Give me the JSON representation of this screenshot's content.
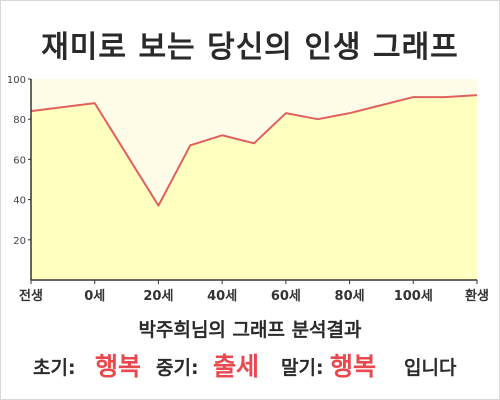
{
  "title": "재미로 보는 당신의 인생 그래프",
  "chart_data": {
    "type": "area",
    "x": [
      -20,
      0,
      20,
      30,
      40,
      50,
      60,
      70,
      80,
      90,
      100,
      110,
      120
    ],
    "values": [
      84,
      88,
      37,
      67,
      72,
      68,
      83,
      80,
      83,
      87,
      91,
      91,
      92
    ],
    "xlim": [
      -20,
      120
    ],
    "ylim": [
      0,
      100
    ],
    "y_ticks": [
      20,
      40,
      60,
      80,
      100
    ],
    "x_ticks": [
      {
        "value": -20,
        "label": "전생"
      },
      {
        "value": 0,
        "label": "0세"
      },
      {
        "value": 20,
        "label": "20세"
      },
      {
        "value": 40,
        "label": "40세"
      },
      {
        "value": 60,
        "label": "60세"
      },
      {
        "value": 80,
        "label": "80세"
      },
      {
        "value": 100,
        "label": "100세"
      },
      {
        "value": 120,
        "label": "환생"
      }
    ],
    "grid": false,
    "line_color": "#e06060",
    "fill_color": "#ffffc0"
  },
  "summary": "박주희님의 그래프 분석결과",
  "result": {
    "early_label": "초기:",
    "early_value": "행복",
    "middle_label": "중기:",
    "middle_value": "출세",
    "late_label": "말기:",
    "late_value": "행복",
    "suffix": "입니다"
  },
  "colors": {
    "highlight": "#e8484e",
    "text": "#2a2a2a"
  }
}
